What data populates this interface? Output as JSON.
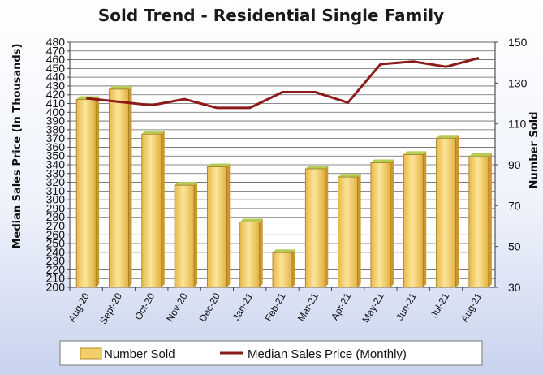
{
  "chart_data": {
    "type": "bar+line",
    "title": "Sold Trend - Residential Single Family",
    "ylabel_left": "Median Sales Price  (In Thousands)",
    "ylabel_right": "Number Sold",
    "categories": [
      "Aug-20",
      "Sept-20",
      "Oct-20",
      "Nov-20",
      "Dec-20",
      "Jan-21",
      "Feb-21",
      "Mar-21",
      "Apr-21",
      "May-21",
      "Jun-21",
      "Jul-21",
      "Aug-21"
    ],
    "left_axis": {
      "ylim": [
        200,
        480
      ],
      "ticks": [
        "200",
        "210",
        "220",
        "230",
        "240",
        "250",
        "260",
        "270",
        "280",
        "290",
        "300",
        "310",
        "320",
        "330",
        "340",
        "350",
        "360",
        "370",
        "380",
        "390",
        "400",
        "410",
        "420",
        "430",
        "440",
        "450",
        "460",
        "470",
        "480"
      ]
    },
    "right_axis": {
      "ylim": [
        30,
        150
      ],
      "ticks": [
        "30",
        "50",
        "70",
        "90",
        "110",
        "130",
        "150"
      ]
    },
    "grid": "horizontal",
    "legend_position": "bottom",
    "series": [
      {
        "name": "Number Sold",
        "type": "bar",
        "axis": "right",
        "color": "#f2cf6a",
        "values": [
          122,
          127,
          105,
          80,
          89,
          62,
          47,
          88,
          84,
          91,
          95,
          103,
          94
        ]
      },
      {
        "name": "Median Sales Price (Monthly)",
        "type": "line",
        "axis": "left",
        "color": "#8b1a1a",
        "values": [
          416,
          412,
          408,
          415,
          405,
          405,
          423,
          423,
          411,
          455,
          458,
          452,
          462
        ]
      }
    ]
  }
}
